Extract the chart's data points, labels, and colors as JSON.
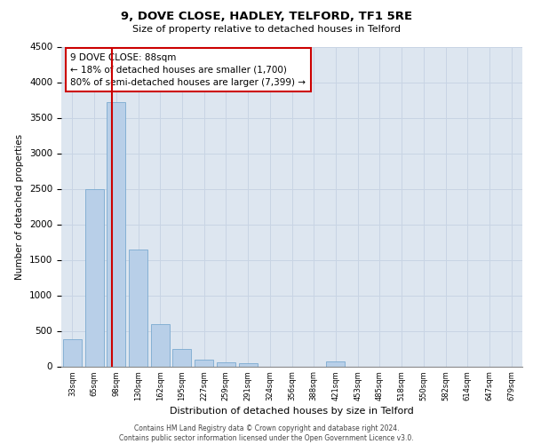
{
  "title1": "9, DOVE CLOSE, HADLEY, TELFORD, TF1 5RE",
  "title2": "Size of property relative to detached houses in Telford",
  "xlabel": "Distribution of detached houses by size in Telford",
  "ylabel": "Number of detached properties",
  "categories": [
    "33sqm",
    "65sqm",
    "98sqm",
    "130sqm",
    "162sqm",
    "195sqm",
    "227sqm",
    "259sqm",
    "291sqm",
    "324sqm",
    "356sqm",
    "388sqm",
    "421sqm",
    "453sqm",
    "485sqm",
    "518sqm",
    "550sqm",
    "582sqm",
    "614sqm",
    "647sqm",
    "679sqm"
  ],
  "values": [
    380,
    2500,
    3720,
    1640,
    600,
    245,
    100,
    60,
    45,
    0,
    0,
    0,
    75,
    0,
    0,
    0,
    0,
    0,
    0,
    0,
    0
  ],
  "bar_color": "#b8cfe8",
  "bar_edgecolor": "#7aaad0",
  "vline_color": "#cc0000",
  "annotation_text": "9 DOVE CLOSE: 88sqm\n← 18% of detached houses are smaller (1,700)\n80% of semi-detached houses are larger (7,399) →",
  "annotation_box_color": "#cc0000",
  "ylim": [
    0,
    4500
  ],
  "yticks": [
    0,
    500,
    1000,
    1500,
    2000,
    2500,
    3000,
    3500,
    4000,
    4500
  ],
  "footer1": "Contains HM Land Registry data © Crown copyright and database right 2024.",
  "footer2": "Contains public sector information licensed under the Open Government Licence v3.0.",
  "grid_color": "#c8d4e4",
  "bg_color": "#dde6f0",
  "bar_width": 0.85
}
